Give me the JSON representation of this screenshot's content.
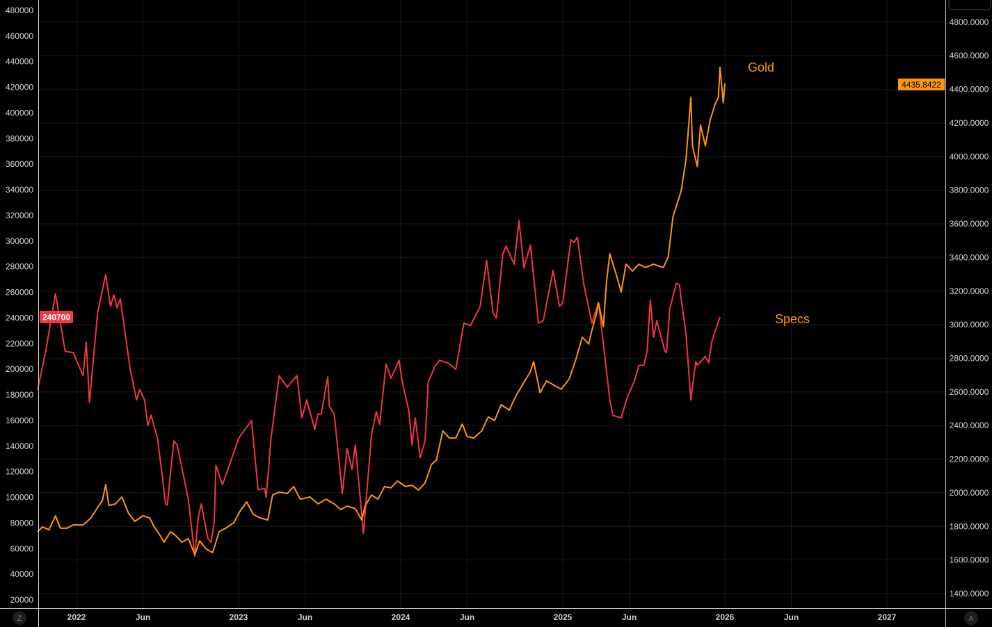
{
  "chart_data": {
    "type": "line",
    "grid": true,
    "x_unit": "year",
    "x_ticks": [
      {
        "label": "2022",
        "value": 2022.0
      },
      {
        "label": "Jun",
        "value": 2022.41
      },
      {
        "label": "2023",
        "value": 2023.0
      },
      {
        "label": "Jun",
        "value": 2023.41
      },
      {
        "label": "2024",
        "value": 2024.0
      },
      {
        "label": "Jun",
        "value": 2024.41
      },
      {
        "label": "2025",
        "value": 2025.0
      },
      {
        "label": "Jun",
        "value": 2025.41
      },
      {
        "label": "2026",
        "value": 2026.0
      },
      {
        "label": "Jun",
        "value": 2026.41
      },
      {
        "label": "2027",
        "value": 2027.0
      }
    ],
    "xlim": [
      2021.76,
      2027.36
    ],
    "left_axis": {
      "ylim": [
        11000,
        484000
      ],
      "ticks": [
        "480000",
        "460000",
        "440000",
        "420000",
        "400000",
        "380000",
        "360000",
        "340000",
        "320000",
        "300000",
        "280000",
        "260000",
        "240000",
        "220000",
        "200000",
        "180000",
        "160000",
        "140000",
        "120000",
        "100000",
        "80000",
        "60000",
        "40000",
        "20000"
      ],
      "last_value_label": "240700"
    },
    "right_axis": {
      "ylim": [
        1310,
        4890
      ],
      "ticks": [
        "4800.0000",
        "4600.0000",
        "4400.0000",
        "4200.0000",
        "4000.0000",
        "3800.0000",
        "3600.0000",
        "3400.0000",
        "3200.0000",
        "3000.0000",
        "2800.0000",
        "2600.0000",
        "2400.0000",
        "2200.0000",
        "2000.0000",
        "1800.0000",
        "1600.0000",
        "1400.0000"
      ],
      "last_value_label": "4435.8422"
    },
    "series": [
      {
        "name": "Specs",
        "axis": "left",
        "color": "#f23645",
        "points": [
          [
            2021.76,
            184000
          ],
          [
            2021.81,
            214000
          ],
          [
            2021.87,
            259000
          ],
          [
            2021.93,
            214000
          ],
          [
            2021.98,
            213000
          ],
          [
            2022.04,
            195000
          ],
          [
            2022.06,
            221000
          ],
          [
            2022.08,
            174000
          ],
          [
            2022.13,
            244000
          ],
          [
            2022.18,
            274000
          ],
          [
            2022.21,
            249000
          ],
          [
            2022.23,
            258000
          ],
          [
            2022.25,
            248000
          ],
          [
            2022.27,
            255000
          ],
          [
            2022.33,
            201000
          ],
          [
            2022.37,
            176000
          ],
          [
            2022.39,
            184000
          ],
          [
            2022.42,
            176000
          ],
          [
            2022.44,
            156000
          ],
          [
            2022.46,
            164000
          ],
          [
            2022.5,
            146000
          ],
          [
            2022.55,
            95000
          ],
          [
            2022.56,
            94000
          ],
          [
            2022.6,
            144000
          ],
          [
            2022.62,
            141000
          ],
          [
            2022.66,
            117000
          ],
          [
            2022.69,
            98000
          ],
          [
            2022.73,
            54000
          ],
          [
            2022.75,
            84000
          ],
          [
            2022.77,
            95000
          ],
          [
            2022.81,
            68000
          ],
          [
            2022.83,
            65000
          ],
          [
            2022.85,
            81000
          ],
          [
            2022.86,
            125000
          ],
          [
            2022.9,
            110000
          ],
          [
            2022.94,
            124000
          ],
          [
            2023.0,
            146000
          ],
          [
            2023.08,
            160000
          ],
          [
            2023.12,
            106000
          ],
          [
            2023.16,
            107000
          ],
          [
            2023.17,
            100000
          ],
          [
            2023.2,
            146000
          ],
          [
            2023.25,
            195000
          ],
          [
            2023.3,
            186000
          ],
          [
            2023.36,
            195000
          ],
          [
            2023.39,
            162000
          ],
          [
            2023.42,
            176000
          ],
          [
            2023.47,
            153000
          ],
          [
            2023.49,
            165000
          ],
          [
            2023.51,
            165000
          ],
          [
            2023.55,
            194000
          ],
          [
            2023.56,
            171000
          ],
          [
            2023.59,
            165000
          ],
          [
            2023.64,
            103000
          ],
          [
            2023.67,
            138000
          ],
          [
            2023.7,
            122000
          ],
          [
            2023.72,
            141000
          ],
          [
            2023.77,
            72000
          ],
          [
            2023.82,
            149000
          ],
          [
            2023.85,
            167000
          ],
          [
            2023.87,
            157000
          ],
          [
            2023.91,
            204000
          ],
          [
            2023.94,
            193000
          ],
          [
            2023.99,
            207000
          ],
          [
            2024.01,
            190000
          ],
          [
            2024.05,
            168000
          ],
          [
            2024.07,
            141000
          ],
          [
            2024.09,
            162000
          ],
          [
            2024.12,
            131000
          ],
          [
            2024.15,
            144000
          ],
          [
            2024.17,
            190000
          ],
          [
            2024.21,
            202000
          ],
          [
            2024.24,
            207000
          ],
          [
            2024.29,
            205000
          ],
          [
            2024.34,
            200000
          ],
          [
            2024.39,
            236000
          ],
          [
            2024.43,
            234000
          ],
          [
            2024.49,
            249000
          ],
          [
            2024.53,
            285000
          ],
          [
            2024.57,
            244000
          ],
          [
            2024.59,
            240000
          ],
          [
            2024.63,
            290000
          ],
          [
            2024.65,
            296000
          ],
          [
            2024.7,
            282000
          ],
          [
            2024.73,
            316000
          ],
          [
            2024.76,
            279000
          ],
          [
            2024.8,
            297000
          ],
          [
            2024.85,
            236000
          ],
          [
            2024.88,
            238000
          ],
          [
            2024.94,
            277000
          ],
          [
            2024.98,
            249000
          ],
          [
            2025.0,
            252000
          ],
          [
            2025.05,
            301000
          ],
          [
            2025.07,
            299000
          ],
          [
            2025.09,
            303000
          ],
          [
            2025.13,
            266000
          ],
          [
            2025.18,
            236000
          ],
          [
            2025.22,
            252000
          ],
          [
            2025.25,
            220000
          ],
          [
            2025.29,
            176000
          ],
          [
            2025.31,
            164000
          ],
          [
            2025.36,
            162000
          ],
          [
            2025.4,
            179000
          ],
          [
            2025.44,
            190000
          ],
          [
            2025.47,
            203000
          ],
          [
            2025.5,
            203000
          ],
          [
            2025.52,
            214000
          ],
          [
            2025.54,
            254000
          ],
          [
            2025.56,
            225000
          ],
          [
            2025.58,
            238000
          ],
          [
            2025.63,
            214000
          ],
          [
            2025.64,
            213000
          ],
          [
            2025.66,
            247000
          ],
          [
            2025.7,
            267000
          ],
          [
            2025.72,
            266000
          ],
          [
            2025.73,
            255000
          ],
          [
            2025.76,
            228000
          ],
          [
            2025.79,
            176000
          ],
          [
            2025.82,
            206000
          ],
          [
            2025.83,
            203000
          ],
          [
            2025.88,
            210000
          ],
          [
            2025.9,
            205000
          ],
          [
            2025.92,
            222000
          ],
          [
            2025.97,
            240700
          ]
        ]
      },
      {
        "name": "Gold",
        "axis": "right",
        "color": "#ff9800",
        "points": [
          [
            2021.76,
            1768
          ],
          [
            2021.79,
            1797
          ],
          [
            2021.83,
            1780
          ],
          [
            2021.87,
            1863
          ],
          [
            2021.9,
            1789
          ],
          [
            2021.94,
            1789
          ],
          [
            2021.98,
            1809
          ],
          [
            2022.04,
            1809
          ],
          [
            2022.09,
            1851
          ],
          [
            2022.13,
            1913
          ],
          [
            2022.16,
            1954
          ],
          [
            2022.18,
            2049
          ],
          [
            2022.2,
            1925
          ],
          [
            2022.24,
            1934
          ],
          [
            2022.28,
            1975
          ],
          [
            2022.32,
            1880
          ],
          [
            2022.36,
            1830
          ],
          [
            2022.41,
            1863
          ],
          [
            2022.45,
            1851
          ],
          [
            2022.48,
            1797
          ],
          [
            2022.52,
            1739
          ],
          [
            2022.54,
            1706
          ],
          [
            2022.58,
            1768
          ],
          [
            2022.61,
            1747
          ],
          [
            2022.65,
            1706
          ],
          [
            2022.69,
            1727
          ],
          [
            2022.73,
            1632
          ],
          [
            2022.76,
            1714
          ],
          [
            2022.8,
            1665
          ],
          [
            2022.84,
            1644
          ],
          [
            2022.88,
            1768
          ],
          [
            2022.92,
            1789
          ],
          [
            2022.97,
            1822
          ],
          [
            2023.01,
            1892
          ],
          [
            2023.05,
            1946
          ],
          [
            2023.09,
            1872
          ],
          [
            2023.13,
            1851
          ],
          [
            2023.18,
            1838
          ],
          [
            2023.21,
            1987
          ],
          [
            2023.25,
            2004
          ],
          [
            2023.3,
            1996
          ],
          [
            2023.34,
            2037
          ],
          [
            2023.38,
            1962
          ],
          [
            2023.44,
            1975
          ],
          [
            2023.49,
            1934
          ],
          [
            2023.54,
            1962
          ],
          [
            2023.59,
            1934
          ],
          [
            2023.63,
            1900
          ],
          [
            2023.67,
            1921
          ],
          [
            2023.72,
            1905
          ],
          [
            2023.76,
            1838
          ],
          [
            2023.78,
            1921
          ],
          [
            2023.82,
            1987
          ],
          [
            2023.86,
            1962
          ],
          [
            2023.9,
            2037
          ],
          [
            2023.94,
            2029
          ],
          [
            2023.98,
            2070
          ],
          [
            2024.03,
            2037
          ],
          [
            2024.07,
            2045
          ],
          [
            2024.11,
            2016
          ],
          [
            2024.15,
            2058
          ],
          [
            2024.19,
            2169
          ],
          [
            2024.22,
            2194
          ],
          [
            2024.26,
            2368
          ],
          [
            2024.3,
            2326
          ],
          [
            2024.34,
            2326
          ],
          [
            2024.38,
            2409
          ],
          [
            2024.41,
            2335
          ],
          [
            2024.45,
            2326
          ],
          [
            2024.5,
            2368
          ],
          [
            2024.54,
            2451
          ],
          [
            2024.58,
            2430
          ],
          [
            2024.62,
            2525
          ],
          [
            2024.67,
            2492
          ],
          [
            2024.71,
            2575
          ],
          [
            2024.76,
            2657
          ],
          [
            2024.8,
            2719
          ],
          [
            2024.82,
            2781
          ],
          [
            2024.86,
            2595
          ],
          [
            2024.9,
            2666
          ],
          [
            2024.95,
            2637
          ],
          [
            2024.99,
            2616
          ],
          [
            2025.04,
            2678
          ],
          [
            2025.08,
            2790
          ],
          [
            2025.12,
            2926
          ],
          [
            2025.16,
            2885
          ],
          [
            2025.18,
            2968
          ],
          [
            2025.21,
            3071
          ],
          [
            2025.22,
            3133
          ],
          [
            2025.25,
            2988
          ],
          [
            2025.27,
            3257
          ],
          [
            2025.29,
            3422
          ],
          [
            2025.33,
            3298
          ],
          [
            2025.36,
            3195
          ],
          [
            2025.39,
            3360
          ],
          [
            2025.43,
            3319
          ],
          [
            2025.47,
            3360
          ],
          [
            2025.51,
            3340
          ],
          [
            2025.56,
            3360
          ],
          [
            2025.62,
            3340
          ],
          [
            2025.65,
            3402
          ],
          [
            2025.68,
            3642
          ],
          [
            2025.73,
            3795
          ],
          [
            2025.76,
            3981
          ],
          [
            2025.79,
            4353
          ],
          [
            2025.8,
            4064
          ],
          [
            2025.83,
            3940
          ],
          [
            2025.85,
            4188
          ],
          [
            2025.88,
            4064
          ],
          [
            2025.91,
            4221
          ],
          [
            2025.94,
            4312
          ],
          [
            2025.96,
            4353
          ],
          [
            2025.97,
            4531
          ],
          [
            2025.99,
            4320
          ],
          [
            2026.0,
            4435.8422
          ]
        ]
      }
    ],
    "annotations": [
      {
        "text": "Gold",
        "color": "#ff9800"
      },
      {
        "text": "Specs",
        "color": "#ff9800"
      }
    ]
  },
  "footer": {
    "left_button": "Z",
    "right_button": "A"
  }
}
